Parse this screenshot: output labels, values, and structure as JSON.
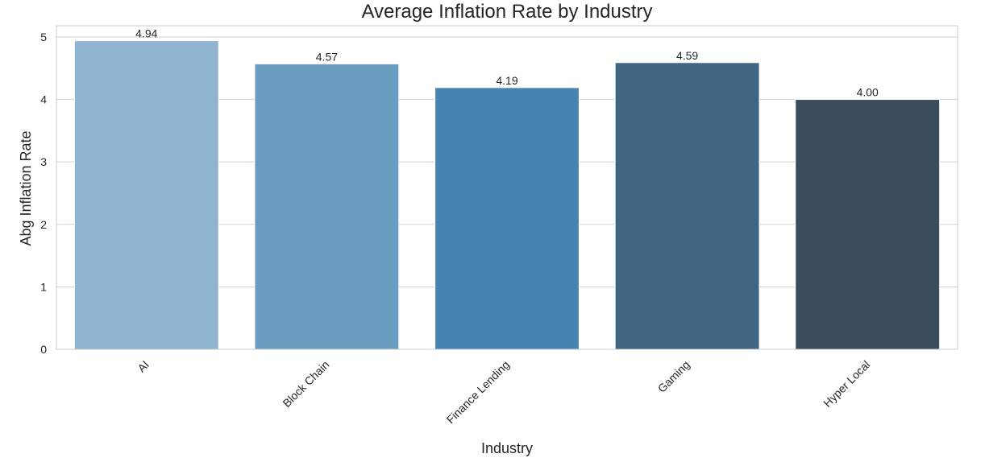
{
  "chart_data": {
    "type": "bar",
    "title": "Average Inflation Rate by Industry",
    "xlabel": "Industry",
    "ylabel": "Abg Inflation Rate",
    "categories": [
      "AI",
      "Block Chain",
      "Finance Lending",
      "Gaming",
      "Hyper Local"
    ],
    "values": [
      4.94,
      4.57,
      4.19,
      4.59,
      4.0
    ],
    "value_labels": [
      "4.94",
      "4.57",
      "4.19",
      "4.59",
      "4.00"
    ],
    "colors": [
      "#8fb4d0",
      "#6b9dc0",
      "#4884b2",
      "#406684",
      "#3a4d5c"
    ],
    "ylim": [
      0,
      5.18
    ],
    "yticks": [
      0,
      1,
      2,
      3,
      4,
      5
    ],
    "grid": true,
    "legend": "none"
  }
}
